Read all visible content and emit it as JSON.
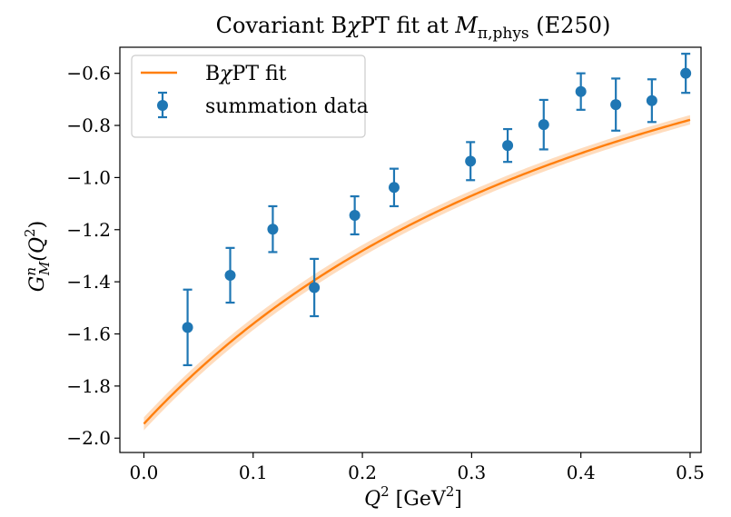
{
  "chart_data": {
    "type": "scatter",
    "title": {
      "prefix": "Covariant B",
      "chi": "χ",
      "middle": "PT fit at ",
      "math_main": "M",
      "math_sub": "π,phys",
      "suffix": " (E250)"
    },
    "xlabel": {
      "main": "Q",
      "sup": "2",
      "unit_prefix": " [GeV",
      "unit_sup": "2",
      "unit_suffix": "]"
    },
    "ylabel": {
      "main": "G",
      "sup": "n",
      "sub": "M",
      "arg_open": "(Q",
      "arg_sup": "2",
      "arg_close": ")"
    },
    "x_ticks": [
      "0.0",
      "0.1",
      "0.2",
      "0.3",
      "0.4",
      "0.5"
    ],
    "x_tick_values": [
      0.0,
      0.1,
      0.2,
      0.3,
      0.4,
      0.5
    ],
    "y_ticks": [
      "−0.6",
      "−0.8",
      "−1.0",
      "−1.2",
      "−1.4",
      "−1.6",
      "−1.8",
      "−2.0"
    ],
    "y_tick_values": [
      -0.6,
      -0.8,
      -1.0,
      -1.2,
      -1.4,
      -1.6,
      -1.8,
      -2.0
    ],
    "xlim": [
      -0.022,
      0.51
    ],
    "ylim": [
      -2.055,
      -0.5
    ],
    "legend": {
      "placement": "top-left",
      "fit_label_prefix": "B",
      "fit_label_chi": "χ",
      "fit_label_suffix": "PT fit",
      "data_label": "summation data"
    },
    "series": [
      {
        "name": "BχPT fit",
        "kind": "line",
        "color": "#ff7f0e",
        "band_color": "#ffbf86",
        "model": {
          "form": "G(x) = G0 / (1 + x / L)^2",
          "G0": -1.945,
          "L": 0.8612
        },
        "band_halfwidth": [
          {
            "x": 0.0,
            "dy": 0.025
          },
          {
            "x": 0.1,
            "dy": 0.024
          },
          {
            "x": 0.2,
            "dy": 0.022
          },
          {
            "x": 0.3,
            "dy": 0.02
          },
          {
            "x": 0.4,
            "dy": 0.019
          },
          {
            "x": 0.5,
            "dy": 0.018
          }
        ]
      },
      {
        "name": "summation data",
        "kind": "errorbar",
        "color": "#1f77b4",
        "points": [
          {
            "x": 0.04,
            "y": -1.575,
            "yerr": 0.145
          },
          {
            "x": 0.079,
            "y": -1.375,
            "yerr": 0.105
          },
          {
            "x": 0.118,
            "y": -1.198,
            "yerr": 0.088
          },
          {
            "x": 0.156,
            "y": -1.422,
            "yerr": 0.11
          },
          {
            "x": 0.193,
            "y": -1.145,
            "yerr": 0.073
          },
          {
            "x": 0.229,
            "y": -1.038,
            "yerr": 0.072
          },
          {
            "x": 0.299,
            "y": -0.937,
            "yerr": 0.073
          },
          {
            "x": 0.333,
            "y": -0.877,
            "yerr": 0.063
          },
          {
            "x": 0.366,
            "y": -0.797,
            "yerr": 0.095
          },
          {
            "x": 0.4,
            "y": -0.67,
            "yerr": 0.07
          },
          {
            "x": 0.432,
            "y": -0.72,
            "yerr": 0.1
          },
          {
            "x": 0.465,
            "y": -0.705,
            "yerr": 0.082
          },
          {
            "x": 0.496,
            "y": -0.6,
            "yerr": 0.075
          }
        ]
      }
    ]
  }
}
